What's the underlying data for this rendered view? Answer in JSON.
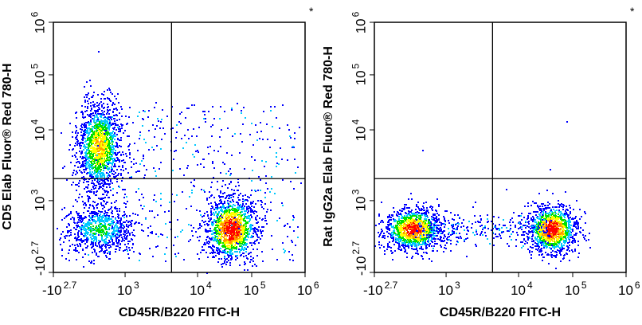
{
  "chart_data": [
    {
      "type": "scatter",
      "subtype": "flow-cytometry-density-dot-plot",
      "xlabel": "CD45R/B220 FITC-H",
      "ylabel": "CD5 Elab Fluor® Red 780-H",
      "marker": "*",
      "x_ticks": [
        {
          "base": "-10",
          "exp": "2.7"
        },
        {
          "base": "10",
          "exp": "3"
        },
        {
          "base": "10",
          "exp": "4"
        },
        {
          "base": "10",
          "exp": "5"
        },
        {
          "base": "10",
          "exp": "6"
        }
      ],
      "y_ticks": [
        {
          "base": "-10",
          "exp": "2.7"
        },
        {
          "base": "10",
          "exp": "3"
        },
        {
          "base": "10",
          "exp": "4"
        },
        {
          "base": "10",
          "exp": "5"
        },
        {
          "base": "10",
          "exp": "6"
        }
      ],
      "xlim": [
        -501,
        1000000
      ],
      "ylim": [
        -501,
        1000000
      ],
      "scale": "biexponential",
      "quadrant_gate": {
        "x": 3300,
        "y": 1300
      },
      "populations": [
        {
          "x": 450,
          "y": 5000,
          "peak": 0.72
        },
        {
          "x": 450,
          "y": 420,
          "peak": 0.45
        },
        {
          "x": 40000,
          "y": 420,
          "peak": 1.0
        }
      ],
      "color_scale": [
        "#0000ff",
        "#00c8ff",
        "#00e000",
        "#ffff00",
        "#ff9900",
        "#ff0000"
      ]
    },
    {
      "type": "scatter",
      "subtype": "flow-cytometry-density-dot-plot",
      "xlabel": "CD45R/B220 FITC-H",
      "ylabel": "Rat IgG2a Elab Fluor® Red 780-H",
      "marker": "*",
      "x_ticks": [
        {
          "base": "-10",
          "exp": "2.7"
        },
        {
          "base": "10",
          "exp": "3"
        },
        {
          "base": "10",
          "exp": "4"
        },
        {
          "base": "10",
          "exp": "5"
        },
        {
          "base": "10",
          "exp": "6"
        }
      ],
      "y_ticks": [
        {
          "base": "-10",
          "exp": "2.7"
        },
        {
          "base": "10",
          "exp": "3"
        },
        {
          "base": "10",
          "exp": "4"
        },
        {
          "base": "10",
          "exp": "5"
        },
        {
          "base": "10",
          "exp": "6"
        }
      ],
      "xlim": [
        -501,
        1000000
      ],
      "ylim": [
        -501,
        1000000
      ],
      "scale": "biexponential",
      "quadrant_gate": {
        "x": 3300,
        "y": 1300
      },
      "populations": [
        {
          "x": 300,
          "y": 414,
          "peak": 0.95
        },
        {
          "x": 40000,
          "y": 414,
          "peak": 1.0
        }
      ],
      "color_scale": [
        "#0000ff",
        "#00c8ff",
        "#00e000",
        "#ffff00",
        "#ff9900",
        "#ff0000"
      ]
    }
  ]
}
